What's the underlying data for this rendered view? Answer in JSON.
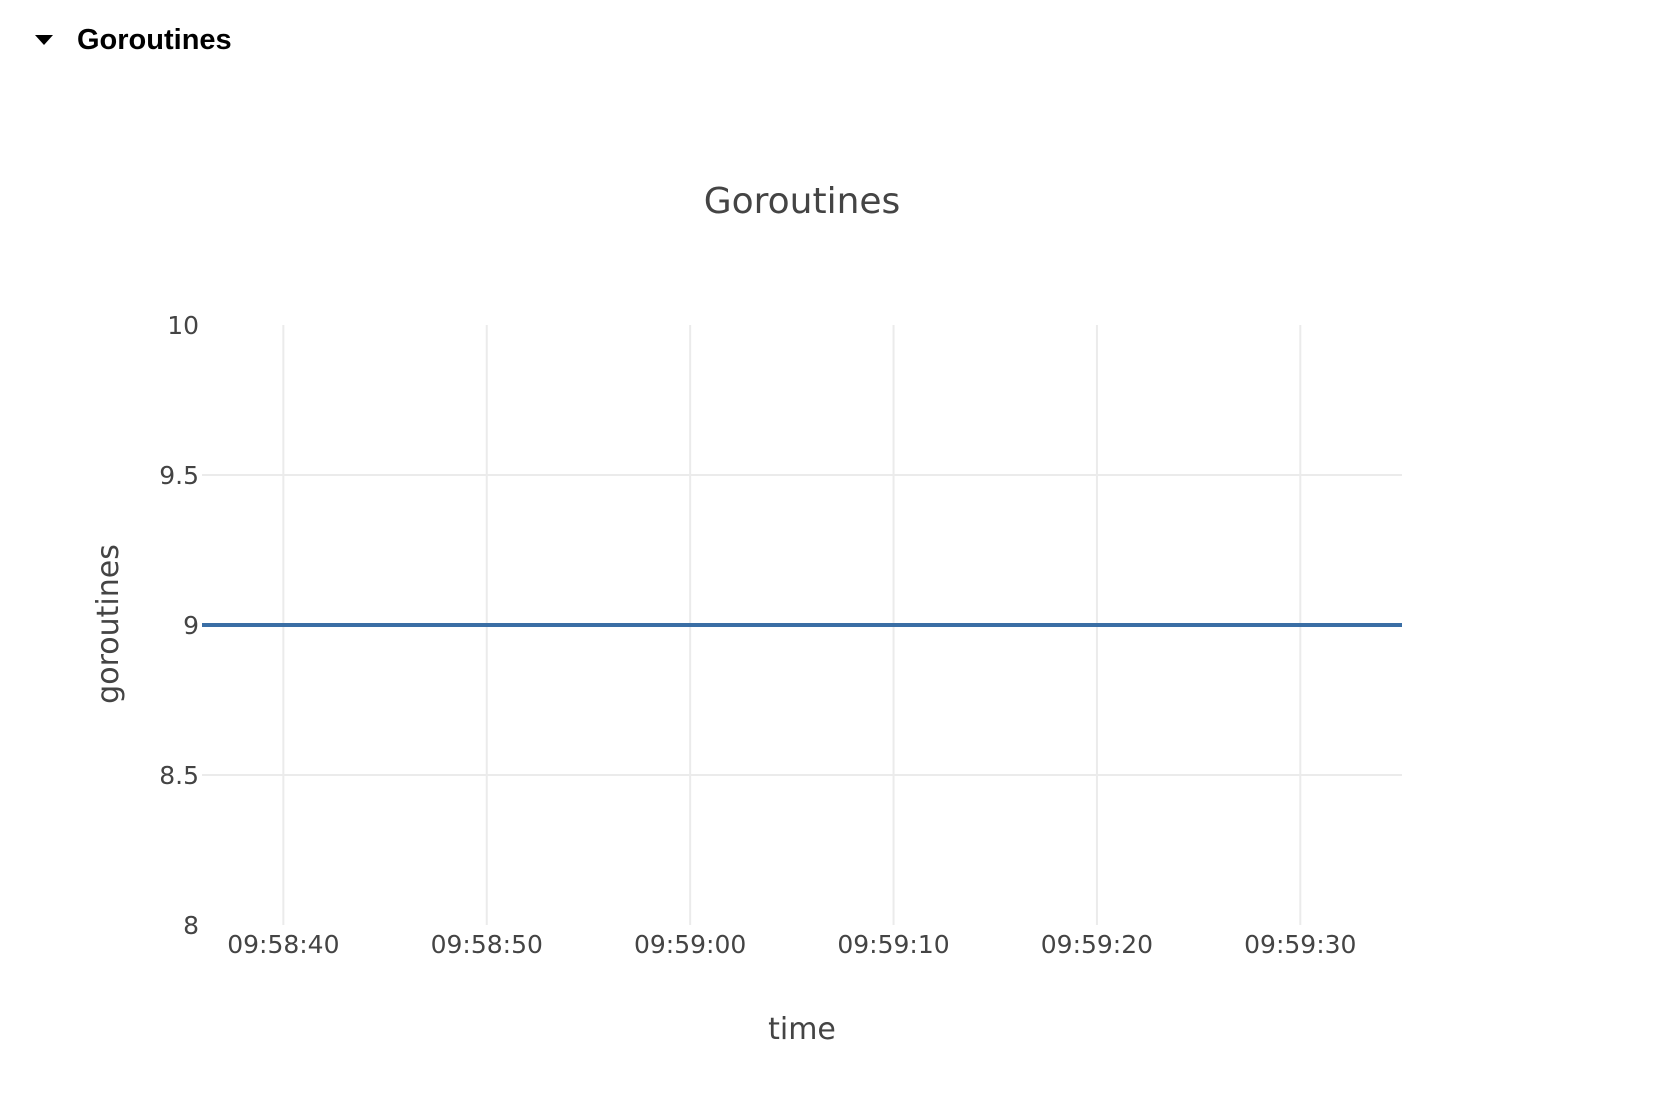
{
  "section": {
    "title": "Goroutines",
    "expanded": true
  },
  "chart_data": {
    "type": "line",
    "title": "Goroutines",
    "xlabel": "time",
    "ylabel": "goroutines",
    "ylim": [
      8,
      10
    ],
    "xlim": [
      "09:58:36",
      "09:59:35"
    ],
    "grid": true,
    "y_ticks": [
      "10",
      "9.5",
      "9",
      "8.5",
      "8"
    ],
    "y_tick_values": [
      10,
      9.5,
      9,
      8.5,
      8
    ],
    "x_ticks": [
      "09:58:40",
      "09:58:50",
      "09:59:00",
      "09:59:10",
      "09:59:20",
      "09:59:30"
    ],
    "x_tick_values": [
      4,
      14,
      24,
      34,
      44,
      54
    ],
    "series": [
      {
        "name": "goroutines",
        "color": "#3a6ea5",
        "x": [
          "09:58:36",
          "09:59:35"
        ],
        "x_values": [
          0,
          59
        ],
        "values": [
          9,
          9
        ]
      }
    ]
  }
}
